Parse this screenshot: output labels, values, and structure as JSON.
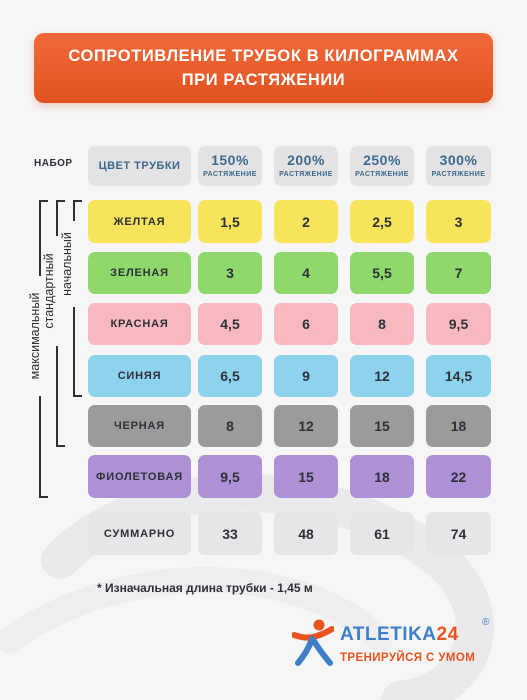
{
  "title": {
    "line1": "СОПРОТИВЛЕНИЕ ТРУБОК В КИЛОГРАММАХ",
    "line2": "ПРИ РАСТЯЖЕНИИ"
  },
  "header": {
    "set_label": "НАБОР",
    "color_label": "ЦВЕТ ТРУБКИ",
    "columns": [
      {
        "pct": "150%",
        "sub": "РАСТЯЖЕНИЕ"
      },
      {
        "pct": "200%",
        "sub": "РАСТЯЖЕНИЕ"
      },
      {
        "pct": "250%",
        "sub": "РАСТЯЖЕНИЕ"
      },
      {
        "pct": "300%",
        "sub": "РАСТЯЖЕНИЕ"
      }
    ]
  },
  "rows": [
    {
      "name": "ЖЕЛТАЯ",
      "values": [
        "1,5",
        "2",
        "2,5",
        "3"
      ],
      "color": "#f7e45a"
    },
    {
      "name": "ЗЕЛЕНАЯ",
      "values": [
        "3",
        "4",
        "5,5",
        "7"
      ],
      "color": "#8ed86c"
    },
    {
      "name": "КРАСНАЯ",
      "values": [
        "4,5",
        "6",
        "8",
        "9,5"
      ],
      "color": "#f7b9bf"
    },
    {
      "name": "СИНЯЯ",
      "values": [
        "6,5",
        "9",
        "12",
        "14,5"
      ],
      "color": "#8dd3ee"
    },
    {
      "name": "ЧЕРНАЯ",
      "values": [
        "8",
        "12",
        "15",
        "18"
      ],
      "color": "#9b9b9b"
    },
    {
      "name": "ФИОЛЕТОВАЯ",
      "values": [
        "9,5",
        "15",
        "18",
        "22"
      ],
      "color": "#ad90d6"
    },
    {
      "name": "СУММАРНО",
      "values": [
        "33",
        "48",
        "61",
        "74"
      ],
      "color": "#e6e6e9"
    }
  ],
  "sets": {
    "max": "максимальный",
    "standard": "стандартный",
    "initial": "начальный"
  },
  "footnote": "* Изначальная длина трубки - 1,45 м",
  "brand": {
    "name_main": "ATLETIKA",
    "name_num": "24",
    "reg": "®",
    "tagline": "ТРЕНИРУЙСЯ С УМОМ"
  },
  "colors": {
    "banner": "#e8531e",
    "brand_blue": "#3e7fc8",
    "brand_orange": "#e8531e",
    "header_text": "#3d6a8a"
  },
  "icons": [
    "swirl-background",
    "runner-logo-icon"
  ]
}
